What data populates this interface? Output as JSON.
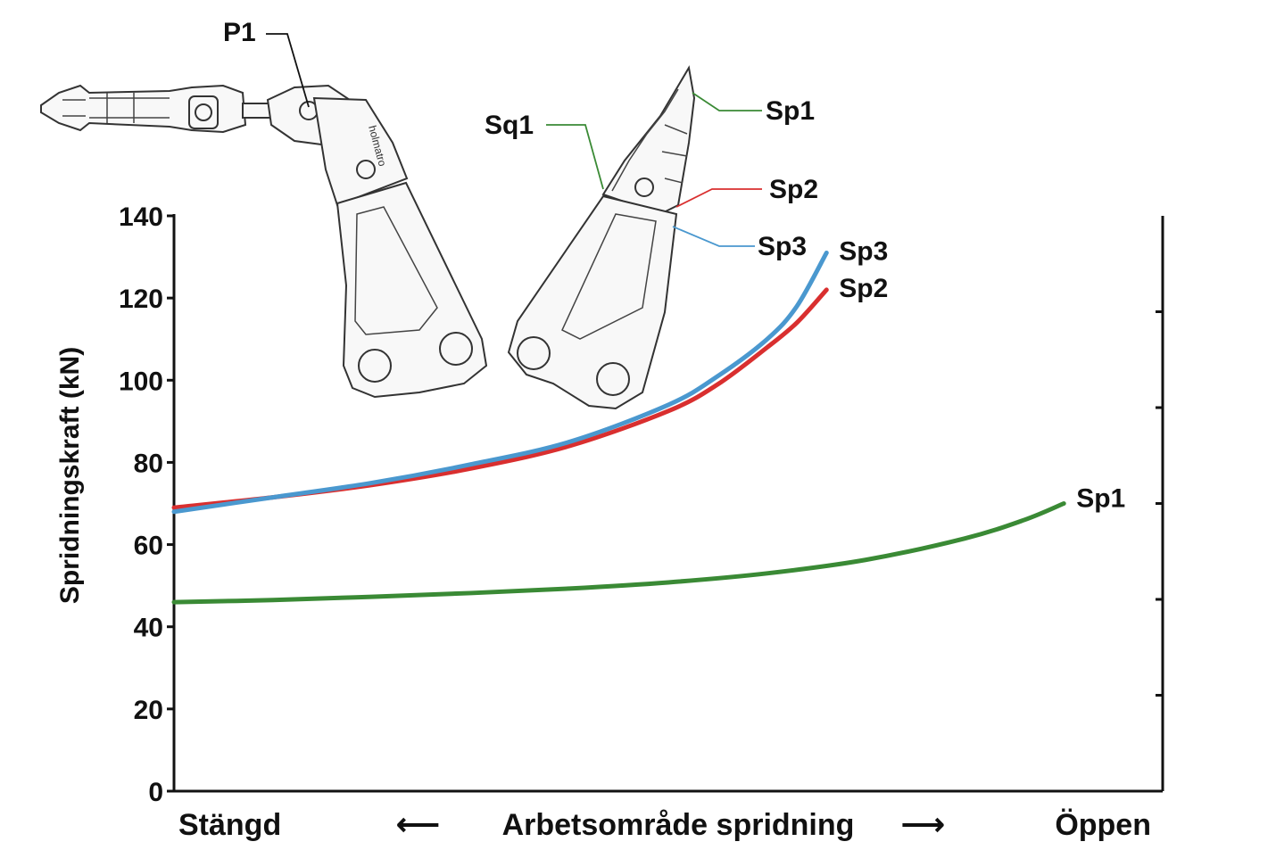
{
  "chart_data": {
    "type": "line",
    "title": "",
    "xlabel": "Arbetsområde spridning",
    "x_left_label": "Stängd",
    "x_right_label": "Öppen",
    "x_left_arrow": "⟵",
    "x_right_arrow": "⟶",
    "ylabel": "Spridningskraft (kN)",
    "ylim": [
      0,
      140
    ],
    "xlim": [
      0,
      1
    ],
    "yticks": [
      "0",
      "20",
      "40",
      "60",
      "80",
      "100",
      "120",
      "140"
    ],
    "grid": false,
    "series": [
      {
        "name": "Sp1",
        "color": "#3a8a35",
        "x": [
          0,
          0.1,
          0.2,
          0.3,
          0.4,
          0.5,
          0.6,
          0.7,
          0.8,
          0.86,
          0.9
        ],
        "y": [
          46,
          46.5,
          47.3,
          48.2,
          49.3,
          50.8,
          53,
          56.3,
          61.5,
          66,
          70
        ]
      },
      {
        "name": "Sp2",
        "color": "#d92f2f",
        "x": [
          0,
          0.1,
          0.2,
          0.3,
          0.4,
          0.5,
          0.55,
          0.6,
          0.63,
          0.66
        ],
        "y": [
          69,
          71.5,
          74.5,
          78.5,
          84,
          92.5,
          99,
          108,
          114,
          122
        ]
      },
      {
        "name": "Sp3",
        "color": "#4a98cf",
        "x": [
          0,
          0.1,
          0.2,
          0.3,
          0.4,
          0.5,
          0.55,
          0.6,
          0.63,
          0.66
        ],
        "y": [
          68,
          71.5,
          75,
          79.5,
          85,
          94,
          101,
          110,
          118,
          131
        ]
      }
    ],
    "diagram_labels": {
      "p1": "P1",
      "sq1": "Sq1",
      "sp1": "Sp1",
      "sp2": "Sp2",
      "sp3": "Sp3",
      "brand": "holmatro"
    }
  }
}
